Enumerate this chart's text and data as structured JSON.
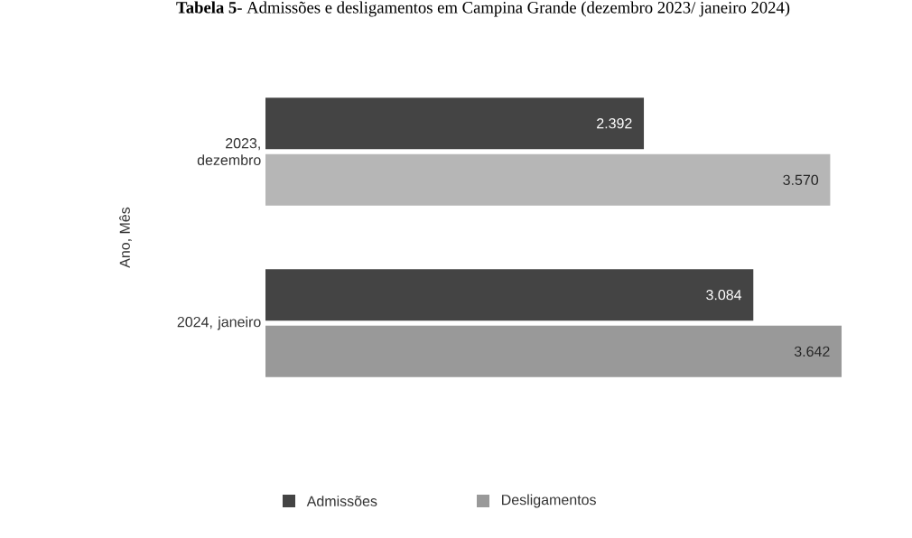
{
  "chart_data": {
    "type": "bar",
    "orientation": "horizontal",
    "title": "**Tabela 5**- Admissões e desligamentos em Campina Grande (dezembro 2023/ janeiro 2024)",
    "ylabel": "Ano, Mês",
    "categories": [
      "2023, dezembro",
      "2024, janeiro"
    ],
    "series": [
      {
        "name": "Admissões",
        "color": "#444444",
        "values": [
          2392,
          3084
        ],
        "value_labels": [
          "2.392",
          "3.084"
        ]
      },
      {
        "name": "Desligamentos",
        "color": "#999999",
        "colors": [
          "#b6b6b6",
          "#999999"
        ],
        "values": [
          3570,
          3642
        ],
        "value_labels": [
          "3.570",
          "3.642"
        ]
      }
    ],
    "legend": "bottom"
  }
}
